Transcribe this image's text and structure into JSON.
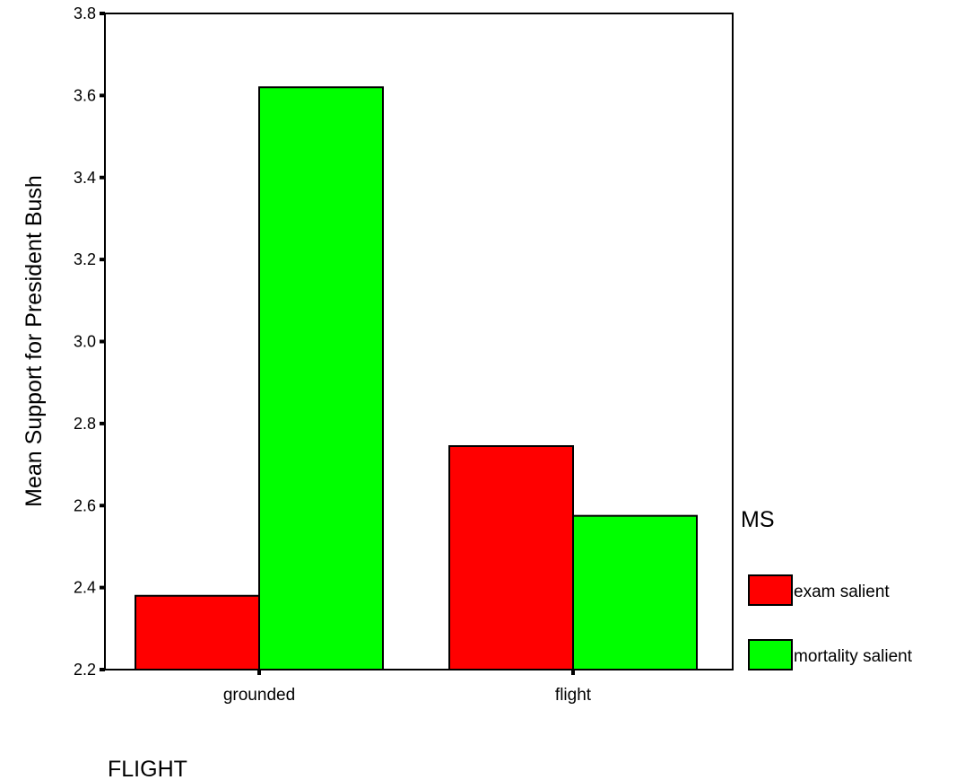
{
  "chart_data": {
    "type": "bar",
    "categories": [
      "grounded",
      "flight"
    ],
    "series": [
      {
        "name": "exam salient",
        "values": [
          2.38,
          2.745
        ],
        "color": "#ff0000"
      },
      {
        "name": "mortality salient",
        "values": [
          3.62,
          2.575
        ],
        "color": "#00ff00"
      }
    ],
    "ylabel": "Mean Support for President Bush",
    "xlabel": "FLIGHT",
    "legend_title": "MS",
    "legend_position": "right",
    "ylim": [
      2.2,
      3.8
    ],
    "yticks": [
      "2.2",
      "2.4",
      "2.6",
      "2.8",
      "3.0",
      "3.2",
      "3.4",
      "3.6",
      "3.8"
    ],
    "grid": false
  }
}
